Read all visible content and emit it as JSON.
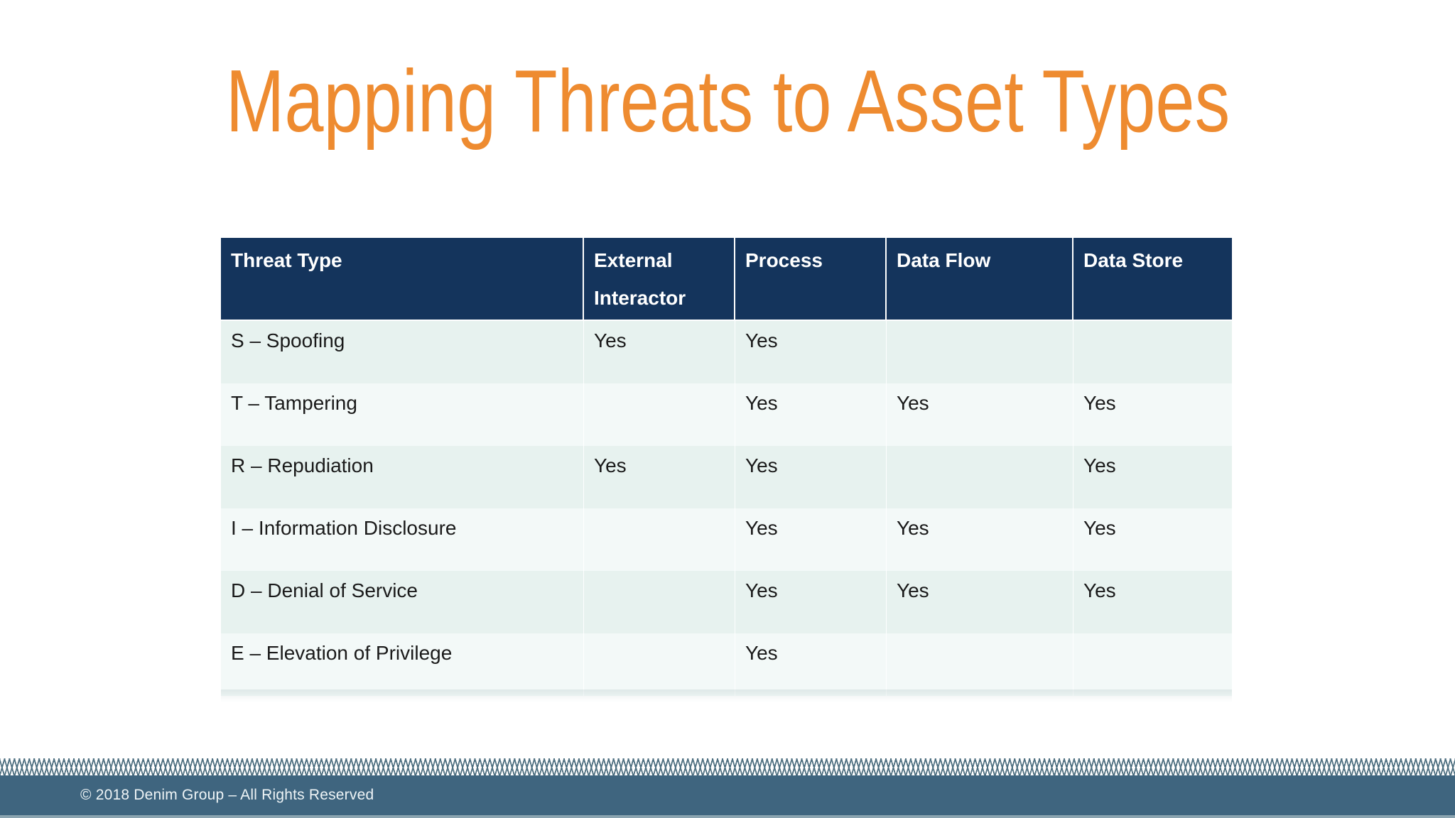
{
  "slide": {
    "title": "Mapping Threats to Asset Types",
    "table": {
      "columns": [
        "Threat Type",
        "External Interactor",
        "Process",
        "Data Flow",
        "Data Store"
      ],
      "rows": [
        [
          "S – Spoofing",
          "Yes",
          "Yes",
          "",
          ""
        ],
        [
          "T – Tampering",
          "",
          "Yes",
          "Yes",
          "Yes"
        ],
        [
          "R – Repudiation",
          "Yes",
          "Yes",
          "",
          "Yes"
        ],
        [
          "I – Information Disclosure",
          "",
          "Yes",
          "Yes",
          "Yes"
        ],
        [
          "D – Denial of Service",
          "",
          "Yes",
          "Yes",
          "Yes"
        ],
        [
          "E – Elevation of Privilege",
          "",
          "Yes",
          "",
          ""
        ]
      ]
    },
    "footer": {
      "copyright": "© 2018 Denim Group – All Rights Reserved"
    },
    "colors": {
      "title_orange": "#EE8B30",
      "header_navy": "#14345C",
      "row_odd_tint": "#E7F2EF",
      "row_even_tint": "#F3F9F8",
      "footer_slate": "#3F657F",
      "hatch_line": "#4E6F80"
    }
  }
}
